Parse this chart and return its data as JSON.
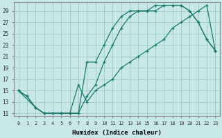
{
  "xlabel": "Humidex (Indice chaleur)",
  "bg_color": "#c8e8e8",
  "grid_color": "#a0c8c8",
  "line_color": "#1a7a6a",
  "xlim": [
    -0.5,
    23.5
  ],
  "ylim": [
    10.5,
    30.5
  ],
  "xticks": [
    0,
    1,
    2,
    3,
    4,
    5,
    6,
    7,
    8,
    9,
    10,
    11,
    12,
    13,
    14,
    15,
    16,
    17,
    18,
    19,
    20,
    21,
    22,
    23
  ],
  "yticks": [
    11,
    13,
    15,
    17,
    19,
    21,
    23,
    25,
    27,
    29
  ],
  "series1_x": [
    0,
    1,
    2,
    3,
    4,
    5,
    6,
    7,
    8,
    9,
    10,
    11,
    12,
    13,
    14,
    15,
    16,
    17,
    18,
    19,
    20,
    21,
    22,
    23
  ],
  "series1_y": [
    15,
    14,
    12,
    11,
    11,
    11,
    11,
    11,
    14,
    16,
    20,
    23,
    26,
    28,
    29,
    29,
    29,
    30,
    30,
    30,
    29,
    27,
    24,
    22
  ],
  "series2_x": [
    0,
    1,
    2,
    3,
    4,
    5,
    6,
    7,
    8,
    9,
    10,
    11,
    12,
    13,
    14,
    15,
    16,
    17,
    18,
    19,
    20,
    21,
    22,
    23
  ],
  "series2_y": [
    15,
    14,
    12,
    11,
    11,
    11,
    11,
    11,
    20,
    20,
    23,
    26,
    28,
    29,
    29,
    29,
    30,
    30,
    30,
    30,
    29,
    27,
    24,
    22
  ],
  "series3_x": [
    0,
    2,
    3,
    4,
    5,
    6,
    7,
    8,
    9,
    10,
    11,
    12,
    13,
    14,
    15,
    16,
    17,
    18,
    19,
    20,
    21,
    22,
    23
  ],
  "series3_y": [
    15,
    12,
    11,
    11,
    11,
    11,
    16,
    13,
    15,
    16,
    17,
    19,
    20,
    21,
    22,
    23,
    24,
    26,
    27,
    28,
    29,
    30,
    22
  ]
}
